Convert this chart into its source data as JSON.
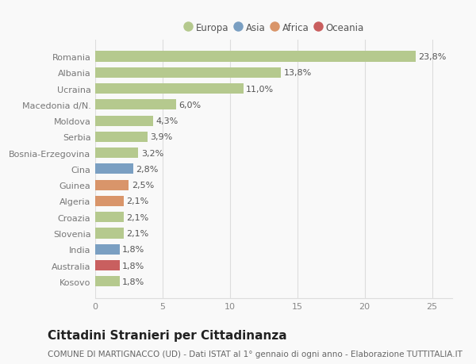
{
  "countries": [
    "Romania",
    "Albania",
    "Ucraina",
    "Macedonia d/N.",
    "Moldova",
    "Serbia",
    "Bosnia-Erzegovina",
    "Cina",
    "Guinea",
    "Algeria",
    "Croazia",
    "Slovenia",
    "India",
    "Australia",
    "Kosovo"
  ],
  "values": [
    23.8,
    13.8,
    11.0,
    6.0,
    4.3,
    3.9,
    3.2,
    2.8,
    2.5,
    2.1,
    2.1,
    2.1,
    1.8,
    1.8,
    1.8
  ],
  "labels": [
    "23,8%",
    "13,8%",
    "11,0%",
    "6,0%",
    "4,3%",
    "3,9%",
    "3,2%",
    "2,8%",
    "2,5%",
    "2,1%",
    "2,1%",
    "2,1%",
    "1,8%",
    "1,8%",
    "1,8%"
  ],
  "continents": [
    "Europa",
    "Europa",
    "Europa",
    "Europa",
    "Europa",
    "Europa",
    "Europa",
    "Asia",
    "Africa",
    "Africa",
    "Europa",
    "Europa",
    "Asia",
    "Oceania",
    "Europa"
  ],
  "continent_colors": {
    "Europa": "#b5c98e",
    "Asia": "#7a9fc2",
    "Africa": "#d9956a",
    "Oceania": "#c95f5f"
  },
  "legend_items": [
    "Europa",
    "Asia",
    "Africa",
    "Oceania"
  ],
  "legend_colors": [
    "#b5c98e",
    "#7a9fc2",
    "#d9956a",
    "#c95f5f"
  ],
  "title": "Cittadini Stranieri per Cittadinanza",
  "subtitle": "COMUNE DI MARTIGNACCO (UD) - Dati ISTAT al 1° gennaio di ogni anno - Elaborazione TUTTITALIA.IT",
  "xlim": [
    0,
    26.5
  ],
  "xticks": [
    0,
    5,
    10,
    15,
    20,
    25
  ],
  "background_color": "#f9f9f9",
  "bar_height": 0.65,
  "grid_color": "#dddddd",
  "label_fontsize": 8,
  "ytick_fontsize": 8,
  "xtick_fontsize": 8,
  "title_fontsize": 11,
  "subtitle_fontsize": 7.5
}
